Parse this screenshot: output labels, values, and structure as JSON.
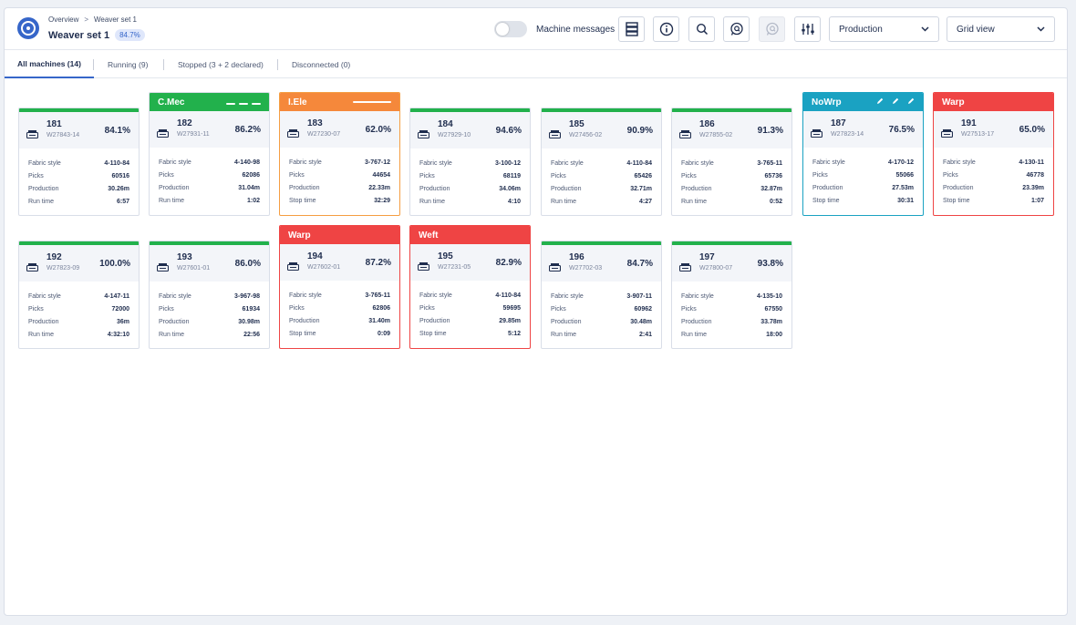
{
  "header": {
    "breadcrumb": [
      "Overview",
      "Weaver set 1"
    ],
    "title": "Weaver set 1",
    "efficiency_badge": "84.7%",
    "machine_messages_label": "Machine messages",
    "machine_messages_on": false,
    "filter_value": "Production",
    "view_value": "Grid view"
  },
  "tabs": [
    {
      "label": "All machines (14)",
      "active": true
    },
    {
      "label": "Running (9)",
      "active": false
    },
    {
      "label": "Stopped (3 + 2 declared)",
      "active": false
    },
    {
      "label": "Disconnected (0)",
      "active": false
    }
  ],
  "stat_labels": {
    "fabric": "Fabric style",
    "picks": "Picks",
    "production": "Production",
    "run": "Run time",
    "stop": "Stop time"
  },
  "colors": {
    "running": "#22b14c",
    "mechanical": "#22b14c",
    "electrical": "#f5883b",
    "nowarp": "#1aa2c2",
    "stop": "#ef4444",
    "accent": "#3666c9"
  },
  "machines": [
    {
      "number": "181",
      "code": "W27843-14",
      "efficiency": "84.1%",
      "fabric": "4-110-84",
      "picks": "60516",
      "production": "30.26m",
      "time_label": "Run time",
      "time": "6:57",
      "banner": null
    },
    {
      "number": "182",
      "code": "W27931-11",
      "efficiency": "86.2%",
      "fabric": "4-140-98",
      "picks": "62086",
      "production": "31.04m",
      "time_label": "Run time",
      "time": "1:02",
      "banner": {
        "label": "C.Mec",
        "color": "#22b14c",
        "decor": "dashes"
      }
    },
    {
      "number": "183",
      "code": "W27230-07",
      "efficiency": "62.0%",
      "fabric": "3-767-12",
      "picks": "44654",
      "production": "22.33m",
      "time_label": "Stop time",
      "time": "32:29",
      "banner": {
        "label": "I.Ele",
        "color": "#f5883b",
        "decor": "line"
      }
    },
    {
      "number": "184",
      "code": "W27929-10",
      "efficiency": "94.6%",
      "fabric": "3-100-12",
      "picks": "68119",
      "production": "34.06m",
      "time_label": "Run time",
      "time": "4:10",
      "banner": null
    },
    {
      "number": "185",
      "code": "W27456-02",
      "efficiency": "90.9%",
      "fabric": "4-110-84",
      "picks": "65426",
      "production": "32.71m",
      "time_label": "Run time",
      "time": "4:27",
      "banner": null
    },
    {
      "number": "186",
      "code": "W27855-02",
      "efficiency": "91.3%",
      "fabric": "3-765-11",
      "picks": "65736",
      "production": "32.87m",
      "time_label": "Run time",
      "time": "0:52",
      "banner": null
    },
    {
      "number": "187",
      "code": "W27823-14",
      "efficiency": "76.5%",
      "fabric": "4-170-12",
      "picks": "55066",
      "production": "27.53m",
      "time_label": "Stop time",
      "time": "30:31",
      "banner": {
        "label": "NoWrp",
        "color": "#1aa2c2",
        "decor": "pens"
      }
    },
    {
      "number": "191",
      "code": "W27513-17",
      "efficiency": "65.0%",
      "fabric": "4-130-11",
      "picks": "46778",
      "production": "23.39m",
      "time_label": "Stop time",
      "time": "1:07",
      "banner": {
        "label": "Warp",
        "color": "#ef4444",
        "decor": "none"
      }
    },
    {
      "number": "192",
      "code": "W27823-09",
      "efficiency": "100.0%",
      "fabric": "4-147-11",
      "picks": "72000",
      "production": "36m",
      "time_label": "Run time",
      "time": "4:32:10",
      "banner": null
    },
    {
      "number": "193",
      "code": "W27601-01",
      "efficiency": "86.0%",
      "fabric": "3-967-98",
      "picks": "61934",
      "production": "30.98m",
      "time_label": "Run time",
      "time": "22:56",
      "banner": null
    },
    {
      "number": "194",
      "code": "W27602-01",
      "efficiency": "87.2%",
      "fabric": "3-765-11",
      "picks": "62806",
      "production": "31.40m",
      "time_label": "Stop time",
      "time": "0:09",
      "banner": {
        "label": "Warp",
        "color": "#ef4444",
        "decor": "none"
      }
    },
    {
      "number": "195",
      "code": "W27231-05",
      "efficiency": "82.9%",
      "fabric": "4-110-84",
      "picks": "59695",
      "production": "29.85m",
      "time_label": "Stop time",
      "time": "5:12",
      "banner": {
        "label": "Weft",
        "color": "#ef4444",
        "decor": "none"
      }
    },
    {
      "number": "196",
      "code": "W27702-03",
      "efficiency": "84.7%",
      "fabric": "3-907-11",
      "picks": "60962",
      "production": "30.48m",
      "time_label": "Run time",
      "time": "2:41",
      "banner": null
    },
    {
      "number": "197",
      "code": "W27800-07",
      "efficiency": "93.8%",
      "fabric": "4-135-10",
      "picks": "67550",
      "production": "33.78m",
      "time_label": "Run time",
      "time": "18:00",
      "banner": null
    }
  ]
}
